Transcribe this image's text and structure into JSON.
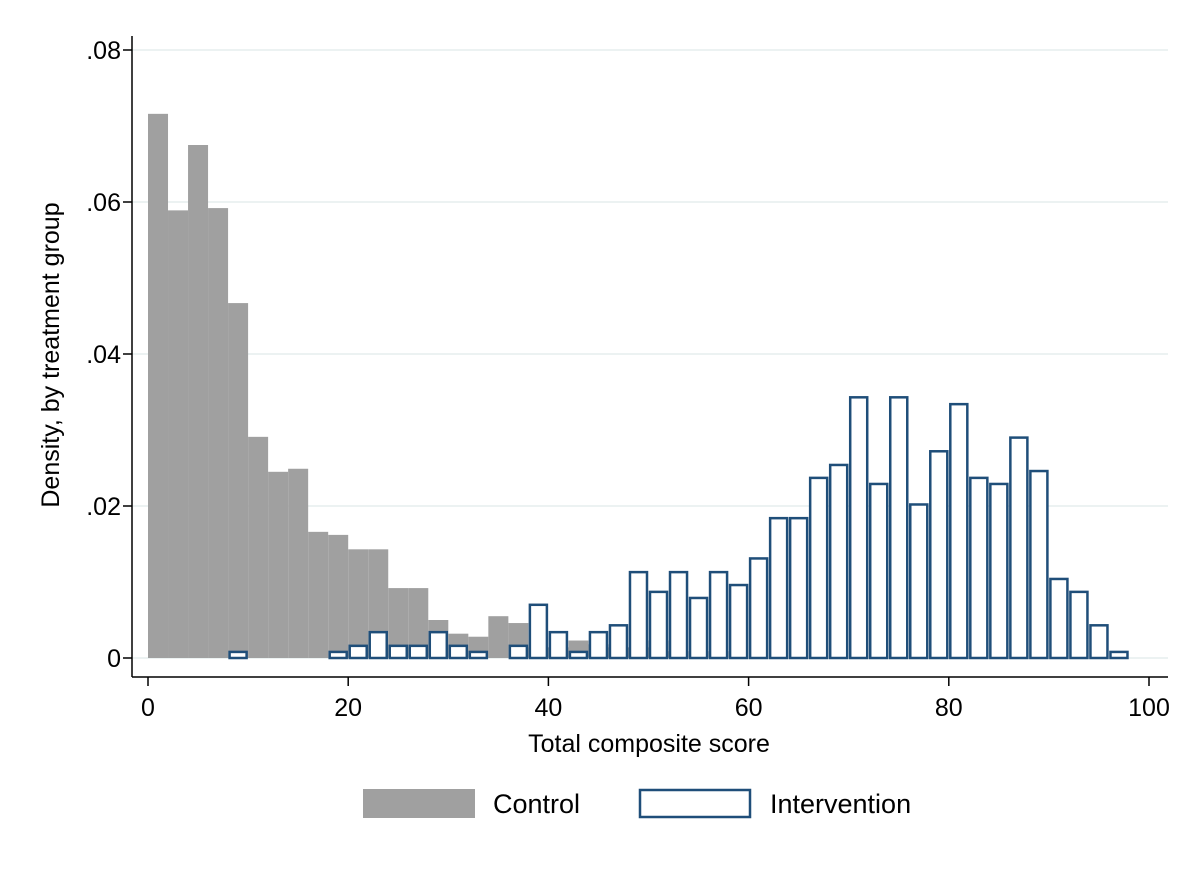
{
  "chart_data": {
    "type": "bar",
    "xlabel": "Total composite score",
    "ylabel": "Density, by treatment group",
    "xlim": [
      0,
      100
    ],
    "ylim": [
      0,
      0.08
    ],
    "grid": true,
    "legend_position": "bottom",
    "x_ticks": [
      {
        "value": 0,
        "label": "0"
      },
      {
        "value": 20,
        "label": "20"
      },
      {
        "value": 40,
        "label": "40"
      },
      {
        "value": 60,
        "label": "60"
      },
      {
        "value": 80,
        "label": "80"
      },
      {
        "value": 100,
        "label": "100"
      }
    ],
    "y_ticks": [
      {
        "value": 0,
        "label": "0"
      },
      {
        "value": 0.02,
        "label": ".02"
      },
      {
        "value": 0.04,
        "label": ".04"
      },
      {
        "value": 0.06,
        "label": ".06"
      },
      {
        "value": 0.08,
        "label": ".08"
      }
    ],
    "bin_width": 2,
    "series": [
      {
        "name": "Control",
        "style": "filled",
        "color": "#a0a0a0",
        "bins": [
          {
            "x": 0,
            "y": 0.0716
          },
          {
            "x": 2,
            "y": 0.0589
          },
          {
            "x": 4,
            "y": 0.0675
          },
          {
            "x": 6,
            "y": 0.0592
          },
          {
            "x": 8,
            "y": 0.0467
          },
          {
            "x": 10,
            "y": 0.0291
          },
          {
            "x": 12,
            "y": 0.0245
          },
          {
            "x": 14,
            "y": 0.0249
          },
          {
            "x": 16,
            "y": 0.0166
          },
          {
            "x": 18,
            "y": 0.0162
          },
          {
            "x": 20,
            "y": 0.0143
          },
          {
            "x": 22,
            "y": 0.0143
          },
          {
            "x": 24,
            "y": 0.0092
          },
          {
            "x": 26,
            "y": 0.0092
          },
          {
            "x": 28,
            "y": 0.005
          },
          {
            "x": 30,
            "y": 0.0032
          },
          {
            "x": 32,
            "y": 0.0028
          },
          {
            "x": 34,
            "y": 0.0055
          },
          {
            "x": 36,
            "y": 0.0046
          },
          {
            "x": 38,
            "y": 0.0014
          },
          {
            "x": 40,
            "y": 0.0014
          },
          {
            "x": 42,
            "y": 0.0023
          },
          {
            "x": 44,
            "y": 0.0018
          },
          {
            "x": 46,
            "y": 0.0014
          },
          {
            "x": 48,
            "y": 0.0014
          },
          {
            "x": 50,
            "y": 0.0023
          },
          {
            "x": 52,
            "y": 0.0009
          },
          {
            "x": 54,
            "y": 0.0
          },
          {
            "x": 56,
            "y": 0.0009
          }
        ]
      },
      {
        "name": "Intervention",
        "style": "outline",
        "color": "#1f4e79",
        "bins": [
          {
            "x": 8,
            "y": 0.0008
          },
          {
            "x": 18,
            "y": 0.0008
          },
          {
            "x": 20,
            "y": 0.0016
          },
          {
            "x": 22,
            "y": 0.0034
          },
          {
            "x": 24,
            "y": 0.0016
          },
          {
            "x": 26,
            "y": 0.0016
          },
          {
            "x": 28,
            "y": 0.0034
          },
          {
            "x": 30,
            "y": 0.0016
          },
          {
            "x": 32,
            "y": 0.0008
          },
          {
            "x": 36,
            "y": 0.0016
          },
          {
            "x": 38,
            "y": 0.007
          },
          {
            "x": 40,
            "y": 0.0034
          },
          {
            "x": 42,
            "y": 0.0008
          },
          {
            "x": 44,
            "y": 0.0034
          },
          {
            "x": 46,
            "y": 0.0043
          },
          {
            "x": 48,
            "y": 0.0113
          },
          {
            "x": 50,
            "y": 0.0087
          },
          {
            "x": 52,
            "y": 0.0113
          },
          {
            "x": 54,
            "y": 0.0079
          },
          {
            "x": 56,
            "y": 0.0113
          },
          {
            "x": 58,
            "y": 0.0096
          },
          {
            "x": 60,
            "y": 0.0131
          },
          {
            "x": 62,
            "y": 0.0184
          },
          {
            "x": 64,
            "y": 0.0184
          },
          {
            "x": 66,
            "y": 0.0237
          },
          {
            "x": 68,
            "y": 0.0254
          },
          {
            "x": 70,
            "y": 0.0343
          },
          {
            "x": 72,
            "y": 0.0229
          },
          {
            "x": 74,
            "y": 0.0343
          },
          {
            "x": 76,
            "y": 0.0202
          },
          {
            "x": 78,
            "y": 0.0272
          },
          {
            "x": 80,
            "y": 0.0334
          },
          {
            "x": 82,
            "y": 0.0237
          },
          {
            "x": 84,
            "y": 0.0229
          },
          {
            "x": 86,
            "y": 0.029
          },
          {
            "x": 88,
            "y": 0.0246
          },
          {
            "x": 90,
            "y": 0.0104
          },
          {
            "x": 92,
            "y": 0.0087
          },
          {
            "x": 94,
            "y": 0.0043
          },
          {
            "x": 96,
            "y": 0.0008
          }
        ]
      }
    ]
  }
}
